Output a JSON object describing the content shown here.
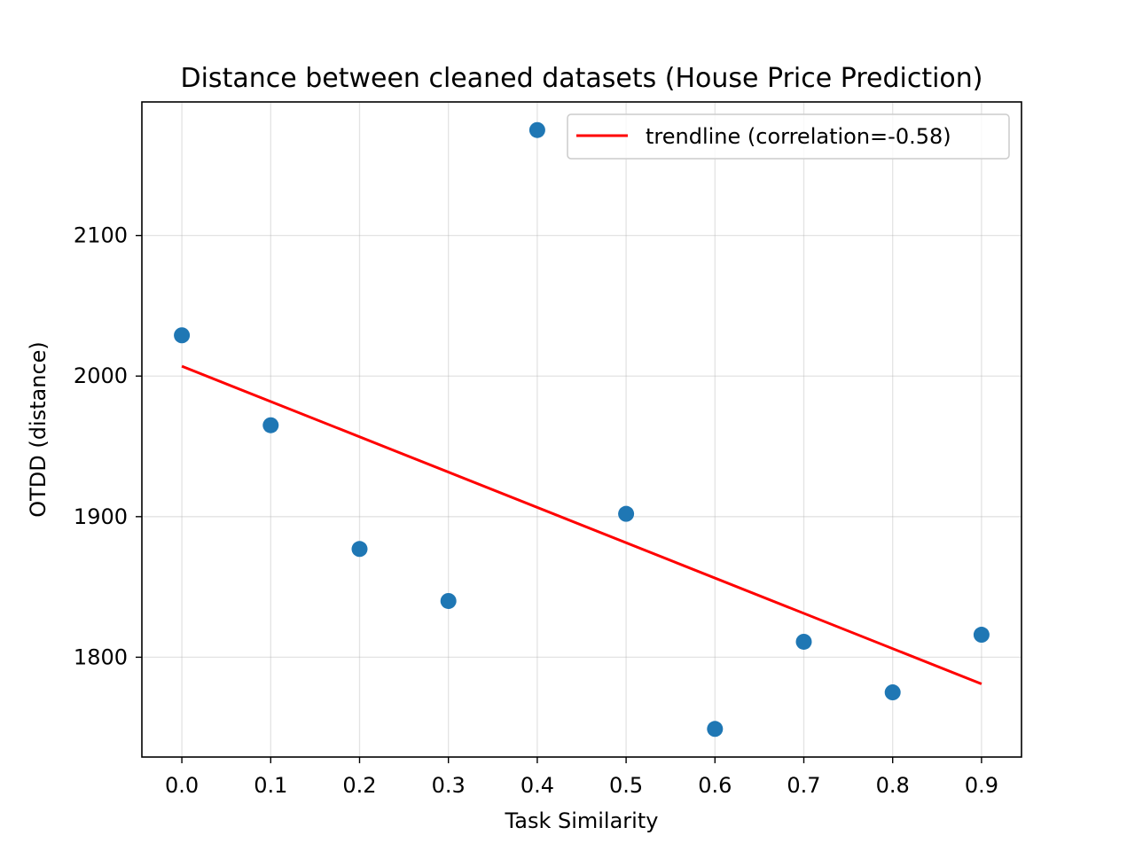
{
  "chart_data": {
    "type": "scatter",
    "title": "Distance between cleaned datasets (House Price Prediction)",
    "xlabel": "Task Similarity",
    "ylabel": "OTDD (distance)",
    "xlim": [
      -0.045,
      0.945
    ],
    "ylim": [
      1729,
      2195
    ],
    "xticks": [
      0.0,
      0.1,
      0.2,
      0.3,
      0.4,
      0.5,
      0.6,
      0.7,
      0.8,
      0.9
    ],
    "xtick_labels": [
      "0.0",
      "0.1",
      "0.2",
      "0.3",
      "0.4",
      "0.5",
      "0.6",
      "0.7",
      "0.8",
      "0.9"
    ],
    "yticks": [
      1800,
      1900,
      2000,
      2100
    ],
    "ytick_labels": [
      "1800",
      "1900",
      "2000",
      "2100"
    ],
    "grid": true,
    "legend_position": "top-right",
    "series": [
      {
        "kind": "scatter",
        "color": "#1f77b4",
        "x": [
          0.0,
          0.1,
          0.2,
          0.3,
          0.4,
          0.5,
          0.6,
          0.7,
          0.8,
          0.9
        ],
        "y": [
          2029,
          1965,
          1877,
          1840,
          2175,
          1902,
          1749,
          1811,
          1775,
          1816
        ]
      },
      {
        "kind": "line",
        "name": "trendline (correlation=-0.58)",
        "color": "#ff0000",
        "x": [
          0.0,
          0.9
        ],
        "y": [
          2007,
          1781
        ]
      }
    ]
  }
}
